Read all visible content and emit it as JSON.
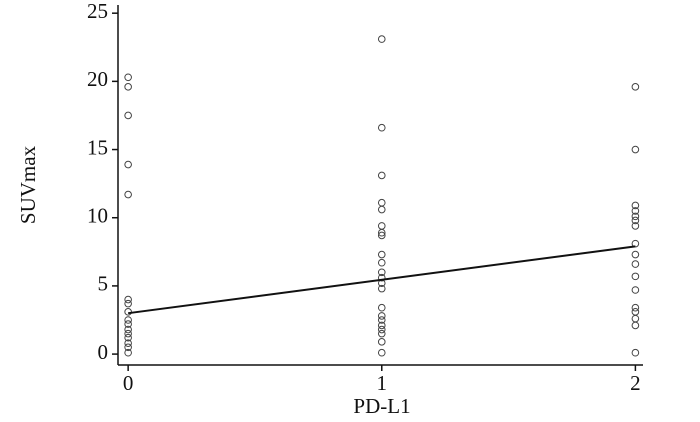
{
  "chart_data": {
    "type": "scatter",
    "x_label": "PD-L1",
    "y_label": "SUVmax",
    "x": [
      0,
      0,
      0,
      0,
      0,
      0,
      0,
      0,
      0,
      0,
      0,
      0,
      0,
      0,
      0,
      0,
      1,
      1,
      1,
      1,
      1,
      1,
      1,
      1,
      1,
      1,
      1,
      1,
      1,
      1,
      1,
      1,
      1,
      1,
      1,
      1,
      1,
      1,
      2,
      2,
      2,
      2,
      2,
      2,
      2,
      2,
      2,
      2,
      2,
      2,
      2,
      2,
      2,
      2,
      2
    ],
    "values": [
      20.3,
      19.6,
      17.5,
      13.9,
      11.7,
      4.0,
      3.7,
      3.1,
      2.5,
      2.2,
      1.8,
      1.5,
      1.2,
      0.8,
      0.5,
      0.1,
      23.1,
      16.6,
      13.1,
      11.1,
      10.6,
      9.4,
      8.9,
      8.7,
      7.3,
      6.7,
      6.0,
      5.6,
      5.2,
      4.8,
      3.4,
      2.8,
      2.5,
      2.1,
      1.8,
      1.5,
      0.9,
      0.1,
      19.6,
      15.0,
      10.9,
      10.5,
      10.1,
      9.8,
      9.4,
      8.1,
      7.3,
      6.6,
      5.7,
      4.7,
      3.4,
      3.1,
      2.6,
      2.1,
      0.1
    ],
    "color": "#444444",
    "trendline": {
      "x": [
        0,
        2
      ],
      "values": [
        3.0,
        7.9
      ],
      "color": "#111111"
    },
    "xlim": [
      -0.04,
      2.03
    ],
    "ylim": [
      -0.8,
      25.6
    ],
    "xticks": [
      0,
      1,
      2
    ],
    "yticks": [
      0,
      5,
      10,
      15,
      20,
      25
    ]
  }
}
